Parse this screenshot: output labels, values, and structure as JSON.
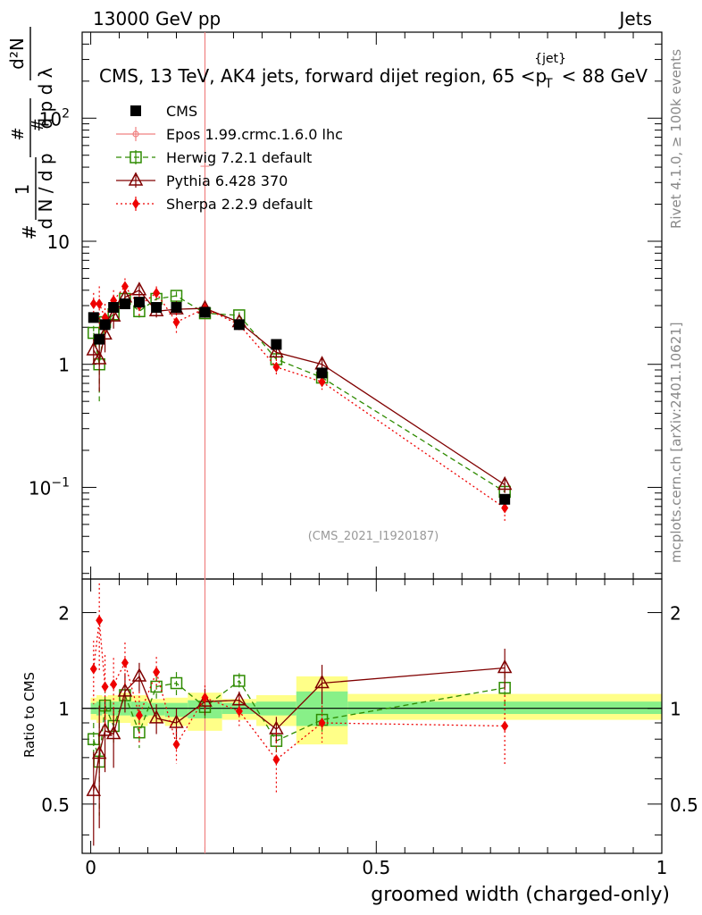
{
  "header": {
    "left": "13000 GeV pp",
    "right": "Jets"
  },
  "chart_data": {
    "type": "scatter",
    "title_parts": {
      "main": "CMS, 13 TeV, AK4 jets, forward dijet region, 65 <p",
      "sub": "T",
      "sup": "{jet}",
      "end": "< 88 GeV"
    },
    "analysis_tag": "(CMS_2021_I1920187)",
    "side_labels": {
      "rivet": "Rivet 4.1.0, ≥ 100k events",
      "mcplots": "mcplots.cern.ch [arXiv:2401.10621]"
    },
    "xlabel": "groomed width (charged-only)",
    "ylabel_top": "1/dN/dp_T d^2N/dp_T dλ",
    "ylabel_ratio": "Ratio to CMS",
    "xlim": [
      -0.015,
      1.0
    ],
    "ylim_top": [
      0.018,
      500
    ],
    "ylim_ratio": [
      0.35,
      2.55
    ],
    "x_ticks": [
      {
        "v": 0,
        "label": "0"
      },
      {
        "v": 0.5,
        "label": "0.5"
      },
      {
        "v": 1,
        "label": "1"
      }
    ],
    "y_ticks_top": [
      {
        "v": 0.1,
        "label": "10",
        "exp": "−1"
      },
      {
        "v": 1,
        "label": "1",
        "exp": ""
      },
      {
        "v": 10,
        "label": "10",
        "exp": ""
      },
      {
        "v": 100,
        "label": "10",
        "exp": "2"
      }
    ],
    "y_ticks_ratio": [
      {
        "v": 0.5,
        "label": "0.5"
      },
      {
        "v": 1,
        "label": "1"
      },
      {
        "v": 2,
        "label": "2"
      }
    ],
    "bins": [
      [
        0,
        0.01
      ],
      [
        0.01,
        0.02
      ],
      [
        0.02,
        0.03
      ],
      [
        0.03,
        0.05
      ],
      [
        0.05,
        0.07
      ],
      [
        0.07,
        0.1
      ],
      [
        0.1,
        0.13
      ],
      [
        0.13,
        0.17
      ],
      [
        0.17,
        0.23
      ],
      [
        0.23,
        0.29
      ],
      [
        0.29,
        0.36
      ],
      [
        0.36,
        0.45
      ],
      [
        0.45,
        1.0
      ]
    ],
    "band_yellow": [
      [
        0.92,
        1.08
      ],
      [
        0.9,
        1.1
      ],
      [
        0.92,
        1.09
      ],
      [
        0.9,
        1.1
      ],
      [
        0.9,
        1.12
      ],
      [
        0.88,
        1.1
      ],
      [
        0.9,
        1.07
      ],
      [
        0.88,
        1.08
      ],
      [
        0.85,
        1.12
      ],
      [
        0.92,
        1.07
      ],
      [
        0.88,
        1.1
      ],
      [
        0.77,
        1.26
      ],
      [
        0.92,
        1.11
      ]
    ],
    "band_green": [
      [
        0.96,
        1.04
      ],
      [
        0.95,
        1.05
      ],
      [
        0.96,
        1.05
      ],
      [
        0.95,
        1.05
      ],
      [
        0.95,
        1.06
      ],
      [
        0.94,
        1.05
      ],
      [
        0.95,
        1.04
      ],
      [
        0.94,
        1.04
      ],
      [
        0.93,
        1.06
      ],
      [
        0.96,
        1.04
      ],
      [
        0.95,
        1.05
      ],
      [
        0.88,
        1.13
      ],
      [
        0.96,
        1.05
      ]
    ],
    "cms": {
      "name": "CMS",
      "x": [
        0.005,
        0.015,
        0.025,
        0.04,
        0.06,
        0.085,
        0.115,
        0.15,
        0.2,
        0.26,
        0.325,
        0.405,
        0.725
      ],
      "y": [
        2.4,
        1.6,
        2.1,
        2.9,
        3.1,
        3.2,
        2.9,
        2.9,
        2.65,
        2.1,
        1.45,
        0.85,
        0.08
      ]
    },
    "series": [
      {
        "name": "Epos 1.99.crmc.1.6.0 lhc",
        "color": "#f08080",
        "style": "solid",
        "marker": "cross",
        "x": [
          0.2
        ],
        "y": [
          2.7
        ],
        "err_lo": [
          0.001
        ],
        "err_hi": [
          38
        ],
        "ratio": [
          1.0
        ],
        "ratio_lo": [
          0.35
        ],
        "ratio_hi": [
          2.55
        ]
      },
      {
        "name": "Herwig 7.2.1 default",
        "color": "#2e8b00",
        "style": "dashed",
        "marker": "square",
        "x": [
          0.005,
          0.015,
          0.025,
          0.04,
          0.06,
          0.085,
          0.115,
          0.15,
          0.2,
          0.26,
          0.325,
          0.405,
          0.725
        ],
        "y": [
          1.8,
          1.0,
          2.2,
          2.55,
          3.4,
          2.7,
          3.4,
          3.6,
          2.6,
          2.5,
          1.1,
          0.78,
          0.092
        ],
        "err": [
          0.25,
          0.5,
          0.3,
          0.3,
          0.3,
          0.3,
          0.3,
          0.3,
          0.2,
          0.15,
          0.1,
          0.07,
          0.01
        ],
        "ratio": [
          0.8,
          0.68,
          1.02,
          0.88,
          1.1,
          0.84,
          1.17,
          1.2,
          1.01,
          1.22,
          0.79,
          0.92,
          1.16
        ],
        "ratio_err": [
          0.1,
          0.22,
          0.14,
          0.1,
          0.1,
          0.09,
          0.1,
          0.1,
          0.08,
          0.07,
          0.07,
          0.08,
          0.13
        ]
      },
      {
        "name": "Pythia 6.428 370",
        "color": "#800000",
        "style": "solid",
        "marker": "triangle",
        "x": [
          0.005,
          0.015,
          0.025,
          0.04,
          0.06,
          0.085,
          0.115,
          0.15,
          0.2,
          0.26,
          0.325,
          0.405,
          0.725
        ],
        "y": [
          1.3,
          1.1,
          1.75,
          2.45,
          3.5,
          4.0,
          2.7,
          2.8,
          2.85,
          2.2,
          1.25,
          1.0,
          0.105
        ],
        "err": [
          0.3,
          0.5,
          0.5,
          0.5,
          0.5,
          0.4,
          0.3,
          0.3,
          0.25,
          0.15,
          0.1,
          0.15,
          0.015
        ],
        "ratio": [
          0.55,
          0.72,
          0.85,
          0.83,
          1.13,
          1.26,
          0.93,
          0.9,
          1.05,
          1.06,
          0.86,
          1.2,
          1.34
        ],
        "ratio_err": [
          0.18,
          0.3,
          0.22,
          0.18,
          0.16,
          0.13,
          0.1,
          0.1,
          0.1,
          0.07,
          0.08,
          0.17,
          0.2
        ]
      },
      {
        "name": "Sherpa 2.2.9 default",
        "color": "#ee0000",
        "style": "dotted",
        "marker": "diamond",
        "x": [
          0.005,
          0.015,
          0.025,
          0.04,
          0.06,
          0.085,
          0.115,
          0.15,
          0.2,
          0.26,
          0.325,
          0.405,
          0.725
        ],
        "y": [
          3.1,
          3.1,
          2.4,
          3.3,
          4.3,
          3.0,
          3.8,
          2.2,
          2.85,
          2.1,
          0.95,
          0.72,
          0.068
        ],
        "err": [
          0.7,
          1.2,
          0.7,
          0.7,
          0.7,
          0.6,
          0.5,
          0.4,
          0.3,
          0.2,
          0.15,
          0.1,
          0.016
        ],
        "ratio": [
          1.33,
          1.89,
          1.17,
          1.19,
          1.39,
          0.95,
          1.3,
          0.77,
          1.08,
          0.98,
          0.69,
          0.9,
          0.88
        ],
        "ratio_err": [
          0.3,
          0.58,
          0.3,
          0.25,
          0.22,
          0.18,
          0.15,
          0.1,
          0.1,
          0.1,
          0.15,
          0.12,
          0.22
        ]
      }
    ]
  }
}
